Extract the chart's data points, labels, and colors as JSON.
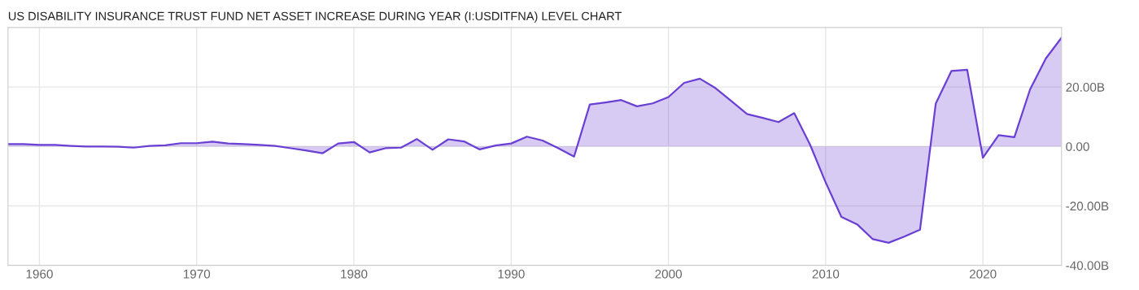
{
  "chart_data": {
    "type": "area",
    "title": "US DISABILITY INSURANCE TRUST FUND NET ASSET INCREASE DURING YEAR (I:USDITFNA) LEVEL CHART",
    "x": [
      1958,
      1959,
      1960,
      1961,
      1962,
      1963,
      1964,
      1965,
      1966,
      1967,
      1968,
      1969,
      1970,
      1971,
      1972,
      1973,
      1974,
      1975,
      1976,
      1977,
      1978,
      1979,
      1980,
      1981,
      1982,
      1983,
      1984,
      1985,
      1986,
      1987,
      1988,
      1989,
      1990,
      1991,
      1992,
      1993,
      1994,
      1995,
      1996,
      1997,
      1998,
      1999,
      2000,
      2001,
      2002,
      2003,
      2004,
      2005,
      2006,
      2007,
      2008,
      2009,
      2010,
      2011,
      2012,
      2013,
      2014,
      2015,
      2016,
      2017,
      2018,
      2019,
      2020,
      2021,
      2022,
      2023,
      2024,
      2025
    ],
    "series": [
      {
        "color": "#6a3fd4",
        "values": [
          0.8,
          0.8,
          0.5,
          0.5,
          0.2,
          0,
          0,
          -0.1,
          -0.4,
          0.2,
          0.4,
          1.1,
          1.1,
          1.6,
          1.0,
          0.8,
          0.5,
          0.2,
          -0.6,
          -1.4,
          -2.3,
          1.0,
          1.5,
          -2.0,
          -0.6,
          -0.4,
          2.5,
          -1.1,
          2.4,
          1.7,
          -1.0,
          0.3,
          1.0,
          3.3,
          2.0,
          -0.6,
          -3.4,
          14.1,
          14.8,
          15.6,
          13.5,
          14.5,
          16.6,
          21.4,
          22.8,
          19.6,
          15.3,
          10.9,
          9.6,
          8.2,
          11.2,
          0.7,
          -12.1,
          -23.7,
          -26.2,
          -31.2,
          -32.4,
          -30.3,
          -28.0,
          14.4,
          25.4,
          25.8,
          -3.8,
          3.8,
          3.1,
          19.2,
          29.6,
          36.6
        ]
      }
    ],
    "xlim": [
      1958,
      2025
    ],
    "xticks": [
      1960,
      1970,
      1980,
      1990,
      2000,
      2010,
      2020
    ],
    "ylim": [
      -40,
      40
    ],
    "yticks": [
      {
        "value": -40,
        "label": "-40.00B"
      },
      {
        "value": -20,
        "label": "-20.00B"
      },
      {
        "value": 0,
        "label": "0.00"
      },
      {
        "value": 20,
        "label": "20.00B"
      }
    ],
    "grid": true,
    "legend": false
  }
}
